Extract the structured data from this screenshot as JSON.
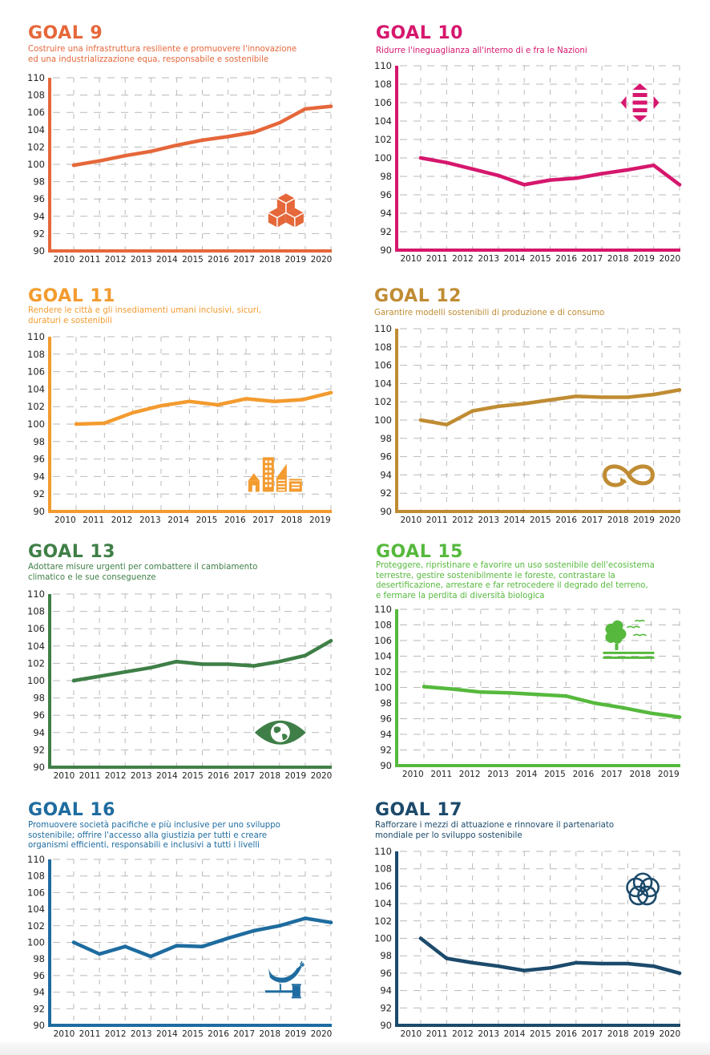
{
  "page": {
    "language": "it"
  },
  "chart_data": [
    {
      "id": "goal9",
      "type": "line",
      "title": "GOAL 9",
      "subtitle": "Costruire una infrastruttura resiliente e promuovere l'innovazione\ned una industrializzazione equa, responsabile e sostenibile",
      "color": "#e5673a",
      "icon": "cubes-icon",
      "x": [
        "2010",
        "2011",
        "2012",
        "2013",
        "2014",
        "2015",
        "2016",
        "2017",
        "2018",
        "2019",
        "2020"
      ],
      "values": [
        99.9,
        100.4,
        101.0,
        101.5,
        102.2,
        102.8,
        103.2,
        103.7,
        104.8,
        106.4,
        106.7
      ],
      "yticks": [
        "110",
        "108",
        "106",
        "104",
        "102",
        "100",
        "98",
        "96",
        "94",
        "92",
        "90"
      ],
      "ylim": [
        90,
        110
      ],
      "grid": true,
      "legend": "none",
      "xlabel": "",
      "ylabel": ""
    },
    {
      "id": "goal10",
      "type": "line",
      "title": "GOAL 10",
      "subtitle": "Ridurre l'ineguaglianza all'interno di e fra le Nazioni",
      "color": "#d6176d",
      "icon": "equality-arrows-icon",
      "x": [
        "2010",
        "2011",
        "2012",
        "2013",
        "2014",
        "2015",
        "2016",
        "2017",
        "2018",
        "2019",
        "2020"
      ],
      "values": [
        100.0,
        99.5,
        98.8,
        98.1,
        97.1,
        97.6,
        97.8,
        98.3,
        98.7,
        99.2,
        97.1
      ],
      "yticks": [
        "110",
        "108",
        "106",
        "104",
        "102",
        "100",
        "98",
        "96",
        "94",
        "92",
        "90"
      ],
      "ylim": [
        90,
        110
      ],
      "grid": true,
      "legend": "none",
      "xlabel": "",
      "ylabel": ""
    },
    {
      "id": "goal11",
      "type": "line",
      "title": "GOAL 11",
      "subtitle": "Rendere le città e gli insediamenti umani inclusivi, sicuri,\nduraturi e sostenibili",
      "color": "#f39b2f",
      "icon": "city-buildings-icon",
      "x": [
        "2010",
        "2011",
        "2012",
        "2013",
        "2014",
        "2015",
        "2016",
        "2017",
        "2018",
        "2019"
      ],
      "values": [
        100.0,
        100.1,
        101.3,
        102.1,
        102.6,
        102.2,
        102.9,
        102.6,
        102.8,
        103.6
      ],
      "yticks": [
        "110",
        "108",
        "106",
        "104",
        "102",
        "100",
        "98",
        "96",
        "94",
        "92",
        "90"
      ],
      "ylim": [
        90,
        110
      ],
      "grid": true,
      "legend": "none",
      "xlabel": "",
      "ylabel": ""
    },
    {
      "id": "goal12",
      "type": "line",
      "title": "GOAL 12",
      "subtitle": "Garantire modelli sostenibili di produzione e di consumo",
      "color": "#c08c33",
      "icon": "infinity-loop-icon",
      "x": [
        "2010",
        "2011",
        "2012",
        "2013",
        "2014",
        "2015",
        "2016",
        "2017",
        "2018",
        "2019",
        "2020"
      ],
      "values": [
        100.0,
        99.5,
        101.0,
        101.5,
        101.8,
        102.2,
        102.6,
        102.5,
        102.5,
        102.8,
        103.3
      ],
      "yticks": [
        "110",
        "108",
        "106",
        "104",
        "102",
        "100",
        "98",
        "96",
        "94",
        "92",
        "90"
      ],
      "ylim": [
        90,
        110
      ],
      "grid": true,
      "legend": "none",
      "xlabel": "",
      "ylabel": ""
    },
    {
      "id": "goal13",
      "type": "line",
      "title": "GOAL 13",
      "subtitle": "Adottare misure urgenti per combattere il cambiamento\nclimatico e le sue conseguenze",
      "color": "#3f7f47",
      "icon": "eye-globe-icon",
      "x": [
        "2010",
        "2011",
        "2012",
        "2013",
        "2014",
        "2015",
        "2016",
        "2017",
        "2018",
        "2019",
        "2020"
      ],
      "values": [
        100.0,
        100.5,
        101.0,
        101.5,
        102.2,
        101.9,
        101.9,
        101.7,
        102.2,
        102.9,
        104.6
      ],
      "yticks": [
        "110",
        "108",
        "106",
        "104",
        "102",
        "100",
        "98",
        "96",
        "94",
        "92",
        "90"
      ],
      "ylim": [
        90,
        110
      ],
      "grid": true,
      "legend": "none",
      "xlabel": "",
      "ylabel": ""
    },
    {
      "id": "goal15",
      "type": "line",
      "title": "GOAL 15",
      "subtitle": "Proteggere, ripristinare e favorire un uso sostenibile dell'ecosistema\nterrestre, gestire sostenibilmente le foreste, contrastare la\ndesertificazione, arrestare e far retrocedere il degrado del terreno,\ne fermare la perdita di diversità biologica",
      "color": "#56b93d",
      "icon": "tree-birds-icon",
      "x": [
        "2010",
        "2011",
        "2012",
        "2013",
        "2014",
        "2015",
        "2016",
        "2017",
        "2018",
        "2019"
      ],
      "values": [
        100.1,
        99.8,
        99.4,
        99.3,
        99.1,
        98.9,
        98.0,
        97.4,
        96.7,
        96.2
      ],
      "yticks": [
        "110",
        "108",
        "106",
        "104",
        "102",
        "100",
        "98",
        "96",
        "94",
        "92",
        "90"
      ],
      "ylim": [
        90,
        110
      ],
      "grid": true,
      "legend": "none",
      "xlabel": "",
      "ylabel": ""
    },
    {
      "id": "goal16",
      "type": "line",
      "title": "GOAL 16",
      "subtitle": "Promuovere società pacifiche e più inclusive per uno sviluppo\nsostenibile; offrire l'accesso alla giustizia per tutti e creare\norganismi efficienti, responsabili e inclusivi a tutti i livelli",
      "color": "#1e6ca0",
      "icon": "dove-gavel-icon",
      "x": [
        "2010",
        "2011",
        "2012",
        "2013",
        "2014",
        "2015",
        "2016",
        "2017",
        "2018",
        "2019",
        "2020"
      ],
      "values": [
        100.0,
        98.6,
        99.5,
        98.3,
        99.6,
        99.5,
        100.5,
        101.4,
        102.0,
        102.9,
        102.4
      ],
      "yticks": [
        "110",
        "108",
        "106",
        "104",
        "102",
        "100",
        "98",
        "96",
        "94",
        "92",
        "90"
      ],
      "ylim": [
        90,
        110
      ],
      "grid": true,
      "legend": "none",
      "xlabel": "",
      "ylabel": ""
    },
    {
      "id": "goal17",
      "type": "line",
      "title": "GOAL 17",
      "subtitle": "Rafforzare i mezzi di attuazione e rinnovare il partenariato\nmondiale per lo sviluppo sostenibile",
      "color": "#1c4a6b",
      "icon": "interlinked-circles-icon",
      "x": [
        "2010",
        "2011",
        "2012",
        "2013",
        "2014",
        "2015",
        "2016",
        "2017",
        "2018",
        "2019",
        "2020"
      ],
      "values": [
        100.0,
        97.7,
        97.2,
        96.8,
        96.3,
        96.6,
        97.2,
        97.1,
        97.1,
        96.8,
        96.0
      ],
      "yticks": [
        "110",
        "108",
        "106",
        "104",
        "102",
        "100",
        "98",
        "96",
        "94",
        "92",
        "90"
      ],
      "ylim": [
        90,
        110
      ],
      "grid": true,
      "legend": "none",
      "xlabel": "",
      "ylabel": ""
    }
  ]
}
